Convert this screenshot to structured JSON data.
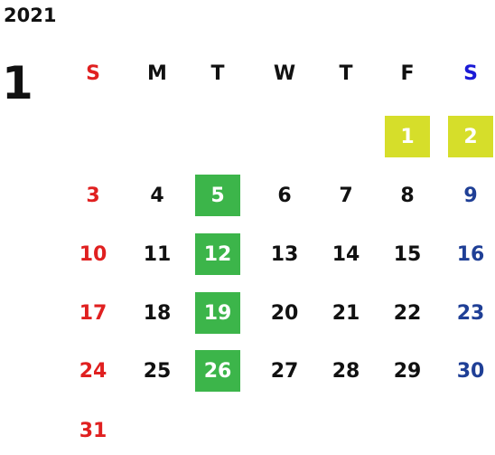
{
  "calendar": {
    "year": "2021",
    "month": "1",
    "weekdays": [
      "S",
      "M",
      "T",
      "W",
      "T",
      "F",
      "S"
    ],
    "weeks": [
      [
        "",
        "",
        "",
        "",
        "",
        "1",
        "2"
      ],
      [
        "3",
        "4",
        "5",
        "6",
        "7",
        "8",
        "9"
      ],
      [
        "10",
        "11",
        "12",
        "13",
        "14",
        "15",
        "16"
      ],
      [
        "17",
        "18",
        "19",
        "20",
        "21",
        "22",
        "23"
      ],
      [
        "24",
        "25",
        "26",
        "27",
        "28",
        "29",
        "30"
      ],
      [
        "31",
        "",
        "",
        "",
        "",
        "",
        ""
      ]
    ],
    "highlights": {
      "yellow": [
        "1",
        "2"
      ],
      "green": [
        "5",
        "12",
        "19",
        "26"
      ]
    }
  },
  "colors": {
    "sunday": "#e02020",
    "saturday_header": "#1a1ad6",
    "saturday": "#1f3f96",
    "highlight_yellow": "#d6de2a",
    "highlight_green": "#3cb54a",
    "text": "#111111"
  }
}
